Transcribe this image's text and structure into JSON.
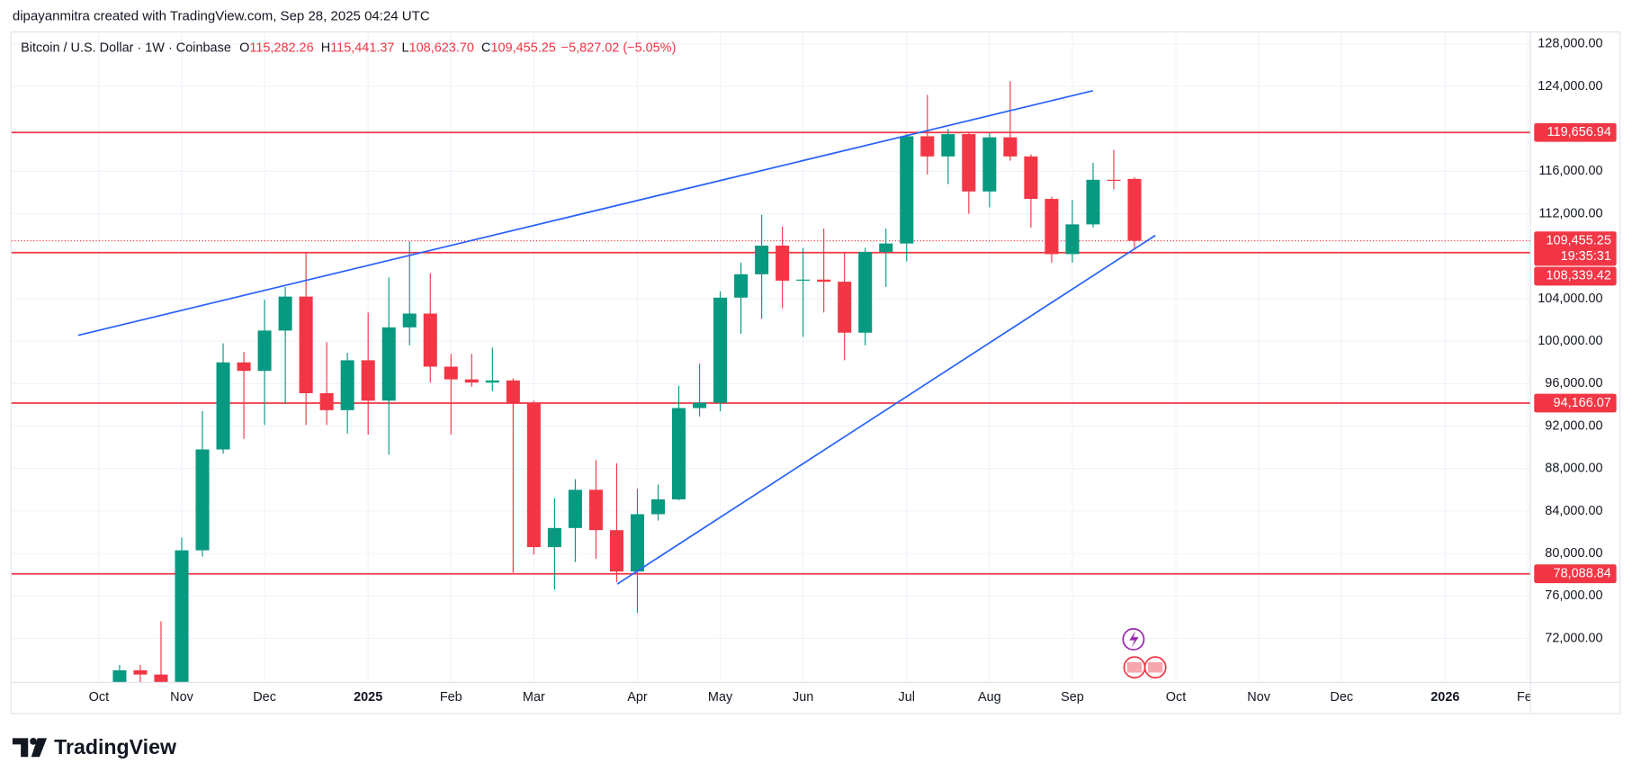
{
  "header": {
    "credit": "dipayanmitra created with TradingView.com, Sep 28, 2025 04:24 UTC"
  },
  "brand": "TradingView",
  "chart_data": {
    "type": "candlestick",
    "symbol": "Bitcoin / U.S. Dollar · 1W · Coinbase",
    "legend": [
      {
        "key": "O",
        "value": "115,282.26"
      },
      {
        "key": "H",
        "value": "115,441.37"
      },
      {
        "key": "L",
        "value": "108,623.70"
      },
      {
        "key": "C",
        "value": "109,455.25"
      }
    ],
    "change": "−5,827.02 (−5.05%)",
    "categories": [
      "Oct",
      null,
      null,
      null,
      "Nov",
      null,
      null,
      null,
      "Dec",
      null,
      null,
      null,
      null,
      "2025",
      null,
      null,
      null,
      "Feb",
      null,
      null,
      null,
      "Mar",
      null,
      null,
      null,
      null,
      "Apr",
      null,
      null,
      null,
      "May",
      null,
      null,
      null,
      "Jun",
      null,
      null,
      null,
      null,
      "Jul",
      null,
      null,
      null,
      "Aug",
      null,
      null,
      null,
      "Sep",
      null,
      null,
      null,
      null,
      "Oct",
      null,
      null,
      null,
      "Nov",
      null,
      null,
      null,
      "Dec",
      null,
      null,
      null,
      null,
      "2026",
      null,
      null,
      null,
      "Feb"
    ],
    "open": [
      null,
      62900,
      69000,
      68600,
      67900,
      80300,
      89800,
      98000,
      97200,
      101000,
      104200,
      95100,
      93500,
      98200,
      94400,
      101300,
      102600,
      97600,
      96400,
      96100,
      96300,
      94200,
      80600,
      82400,
      86000,
      82200,
      78300,
      83700,
      85100,
      93700,
      94200,
      104100,
      106300,
      109000,
      105700,
      105800,
      105600,
      100800,
      108400,
      109200,
      119300,
      117400,
      119500,
      114100,
      119200,
      117400,
      113400,
      108200,
      111000,
      115200,
      115282.26,
      null,
      null,
      null,
      null,
      null,
      null,
      null,
      null,
      null,
      null,
      null,
      null,
      null,
      null,
      null,
      null,
      null,
      null,
      null
    ],
    "high": [
      null,
      69500,
      69500,
      73600,
      81500,
      93400,
      99800,
      99000,
      103900,
      105100,
      108300,
      99900,
      98900,
      102700,
      106000,
      109400,
      106400,
      98800,
      98800,
      99400,
      96500,
      94400,
      85200,
      87000,
      88800,
      88500,
      86100,
      86500,
      95800,
      97900,
      104700,
      107400,
      111900,
      110800,
      108800,
      110600,
      108300,
      108800,
      110600,
      119500,
      123200,
      120000,
      119700,
      119600,
      124500,
      117600,
      113600,
      113300,
      116800,
      118000,
      115441.37,
      null,
      null,
      null,
      null,
      null,
      null,
      null,
      null,
      null,
      null,
      null,
      null,
      null,
      null,
      null,
      null,
      null,
      null,
      null
    ],
    "low": [
      null,
      62000,
      65500,
      66800,
      66800,
      79700,
      89400,
      90800,
      92100,
      94100,
      92100,
      92100,
      91300,
      91200,
      89300,
      99600,
      96100,
      91200,
      95700,
      95300,
      78200,
      79900,
      76600,
      79200,
      79500,
      77300,
      74400,
      83100,
      85000,
      92900,
      93400,
      100700,
      102100,
      103100,
      100400,
      102700,
      98200,
      99600,
      105100,
      107500,
      115700,
      114800,
      112000,
      112600,
      117000,
      110700,
      107400,
      107400,
      110700,
      114300,
      108623.7,
      null,
      null,
      null,
      null,
      null,
      null,
      null,
      null,
      null,
      null,
      null,
      null,
      null,
      null,
      null,
      null,
      null,
      null,
      null
    ],
    "close": [
      null,
      69000,
      68600,
      67900,
      80300,
      89800,
      98000,
      97200,
      101000,
      104200,
      95100,
      93500,
      98200,
      94400,
      101300,
      102600,
      97600,
      96400,
      96100,
      96300,
      94200,
      80600,
      82400,
      86000,
      82200,
      78300,
      83700,
      85100,
      93700,
      94200,
      104100,
      106300,
      109000,
      105700,
      105800,
      105600,
      100800,
      108400,
      109200,
      119300,
      117400,
      119500,
      114100,
      119200,
      117400,
      113400,
      108200,
      111000,
      115200,
      115100,
      109455.25,
      null,
      null,
      null,
      null,
      null,
      null,
      null,
      null,
      null,
      null,
      null,
      null,
      null,
      null,
      null,
      null,
      null,
      null,
      null
    ],
    "up_color": "#089981",
    "down_color": "#f23645",
    "ylim": [
      67900,
      129180
    ],
    "yticks": [
      {
        "value": 72000,
        "label": "72,000.00"
      },
      {
        "value": 76000,
        "label": "76,000.00"
      },
      {
        "value": 80000,
        "label": "80,000.00"
      },
      {
        "value": 84000,
        "label": "84,000.00"
      },
      {
        "value": 88000,
        "label": "88,000.00"
      },
      {
        "value": 92000,
        "label": "92,000.00"
      },
      {
        "value": 96000,
        "label": "96,000.00"
      },
      {
        "value": 100000,
        "label": "100,000.00"
      },
      {
        "value": 104000,
        "label": "104,000.00"
      },
      {
        "value": 112000,
        "label": "112,000.00"
      },
      {
        "value": 116000,
        "label": "116,000.00"
      },
      {
        "value": 124000,
        "label": "124,000.00"
      },
      {
        "value": 128000,
        "label": "128,000.00"
      }
    ],
    "levels": [
      {
        "value": 119656.94,
        "label": "119,656.94"
      },
      {
        "value": 108339.42,
        "label": "108,339.42"
      },
      {
        "value": 94166.07,
        "label": "94,166.07"
      },
      {
        "value": 78088.84,
        "label": "78,088.84"
      }
    ],
    "level_color": "#f23645",
    "last_price": {
      "value": 109455.25,
      "label": "109,455.25",
      "countdown": "19:35:31"
    },
    "grid": true
  }
}
